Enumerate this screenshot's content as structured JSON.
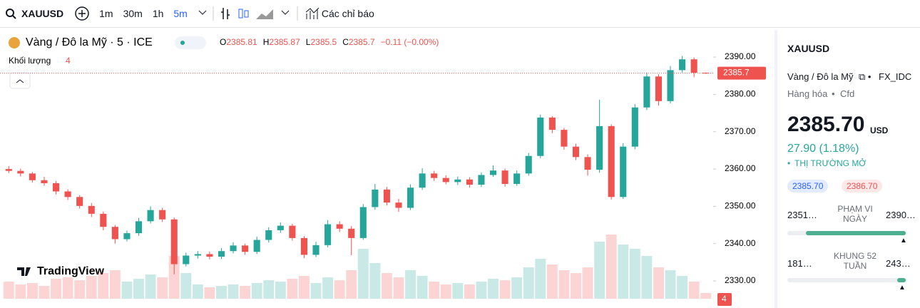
{
  "toolbar": {
    "symbol": "XAUUSD",
    "intervals": [
      "1m",
      "30m",
      "1h",
      "5m"
    ],
    "indicators": "Các chỉ báo"
  },
  "chart_data": {
    "type": "candlestick",
    "title": "Vàng / Đô la Mỹ · 5 · ICE",
    "ohlc_labels": [
      "O",
      "H",
      "L",
      "C"
    ],
    "change_text": "−0.11 (−0.00%)",
    "volume_label": "Khối lượng",
    "watermark": "TradingView",
    "up_color": "#26a69a",
    "down_color": "#ef5350",
    "ylim": [
      2326,
      2396.7
    ],
    "yticks": [
      {
        "value": 2330,
        "label": "2330.00"
      },
      {
        "value": 2340,
        "label": "2340.00"
      },
      {
        "value": 2350,
        "label": "2350.00"
      },
      {
        "value": 2360,
        "label": "2360.00"
      },
      {
        "value": 2370,
        "label": "2370.00"
      },
      {
        "value": 2380,
        "label": "2380.00"
      },
      {
        "value": 2390,
        "label": "2390.00"
      }
    ],
    "open": [
      2360.0,
      2359.5,
      2358.8,
      2357.0,
      2356.2,
      2354.0,
      2352.5,
      2350.1,
      2348.0,
      2344.5,
      2341.2,
      2342.8,
      2346.0,
      2349.0,
      2346.5,
      2334.5,
      2336.8,
      2337.2,
      2336.5,
      2338.0,
      2339.5,
      2337.8,
      2341.0,
      2343.6,
      2344.8,
      2341.5,
      2337.0,
      2339.6,
      2345.2,
      2344.0,
      2341.5,
      2349.8,
      2354.5,
      2351.0,
      2349.6,
      2355.0,
      2358.8,
      2357.6,
      2356.5,
      2357.2,
      2355.8,
      2358.4,
      2359.6,
      2356.0,
      2358.8,
      2363.5,
      2373.8,
      2370.5,
      2366.0,
      2363.2,
      2359.8,
      2371.5,
      2352.5,
      2366.0,
      2376.5,
      2384.8,
      2378.2,
      2386.5,
      2389.4,
      2385.81
    ],
    "high": [
      2360.8,
      2360.1,
      2359.2,
      2357.9,
      2356.8,
      2354.6,
      2353.0,
      2350.9,
      2348.6,
      2345.0,
      2343.5,
      2346.9,
      2350.0,
      2349.6,
      2347.0,
      2337.6,
      2338.0,
      2337.9,
      2338.8,
      2340.4,
      2340.0,
      2341.9,
      2344.4,
      2345.7,
      2345.3,
      2342.0,
      2340.5,
      2346.3,
      2346.0,
      2344.7,
      2350.6,
      2356.0,
      2355.2,
      2352.0,
      2355.9,
      2360.2,
      2359.5,
      2358.3,
      2358.0,
      2357.8,
      2359.1,
      2361.0,
      2360.1,
      2359.6,
      2364.3,
      2374.6,
      2374.2,
      2371.0,
      2366.8,
      2363.9,
      2378.6,
      2372.0,
      2366.9,
      2377.4,
      2385.9,
      2385.4,
      2387.6,
      2390.3,
      2389.9,
      2385.87
    ],
    "low": [
      2358.9,
      2358.0,
      2356.4,
      2355.5,
      2353.2,
      2351.7,
      2349.4,
      2347.1,
      2343.6,
      2340.0,
      2340.6,
      2342.1,
      2345.4,
      2345.8,
      2331.8,
      2333.9,
      2336.0,
      2335.8,
      2335.9,
      2337.4,
      2337.0,
      2337.2,
      2340.3,
      2342.9,
      2340.8,
      2336.1,
      2336.4,
      2339.0,
      2343.1,
      2336.9,
      2341.0,
      2349.1,
      2350.2,
      2348.5,
      2349.0,
      2354.4,
      2356.8,
      2355.9,
      2355.7,
      2355.0,
      2355.2,
      2357.9,
      2355.3,
      2355.5,
      2358.2,
      2362.9,
      2369.6,
      2365.2,
      2362.4,
      2358.2,
      2359.0,
      2351.8,
      2352.0,
      2365.3,
      2375.8,
      2377.0,
      2377.6,
      2385.9,
      2384.6,
      2385.5
    ],
    "close": [
      2359.5,
      2358.8,
      2357.0,
      2356.2,
      2354.0,
      2352.5,
      2350.1,
      2348.0,
      2344.5,
      2341.2,
      2342.8,
      2346.0,
      2349.0,
      2346.5,
      2334.5,
      2336.8,
      2337.2,
      2336.5,
      2338.0,
      2339.5,
      2337.8,
      2341.0,
      2343.6,
      2344.8,
      2341.5,
      2337.0,
      2339.6,
      2345.2,
      2344.0,
      2341.5,
      2349.8,
      2354.5,
      2351.0,
      2349.6,
      2355.0,
      2358.8,
      2357.6,
      2356.5,
      2357.2,
      2355.8,
      2358.4,
      2359.6,
      2356.0,
      2358.8,
      2363.5,
      2373.8,
      2370.5,
      2366.0,
      2363.2,
      2359.8,
      2371.5,
      2352.5,
      2366.0,
      2376.5,
      2384.8,
      2378.2,
      2386.5,
      2389.4,
      2385.81,
      2385.7
    ],
    "volume": [
      12,
      10,
      11,
      9,
      14,
      15,
      13,
      16,
      18,
      20,
      12,
      14,
      17,
      15,
      30,
      18,
      10,
      8,
      9,
      10,
      9,
      11,
      13,
      12,
      14,
      16,
      11,
      15,
      13,
      20,
      35,
      25,
      18,
      15,
      20,
      16,
      12,
      10,
      11,
      10,
      12,
      14,
      13,
      15,
      22,
      28,
      24,
      20,
      18,
      22,
      40,
      45,
      38,
      35,
      30,
      22,
      20,
      16,
      12,
      4
    ]
  },
  "side_panel": {
    "symbol": "XAUUSD",
    "name": "Vàng / Đô la Mỹ",
    "exchange": "FX_IDC",
    "category": "Hàng hóa",
    "subcategory": "Cfd",
    "price": "2385.70",
    "currency": "USD",
    "change": "27.90 (1.18%)",
    "status": "THỊ TRƯỜNG MỞ",
    "bid": "2385.70",
    "ask": "2386.70",
    "day_low": "2351…",
    "day_label": "PHẠM VI NGÀY",
    "day_high": "2390…",
    "week_low": "181…",
    "week_label": "KHUNG 52 TUẦN",
    "week_high": "243…"
  }
}
